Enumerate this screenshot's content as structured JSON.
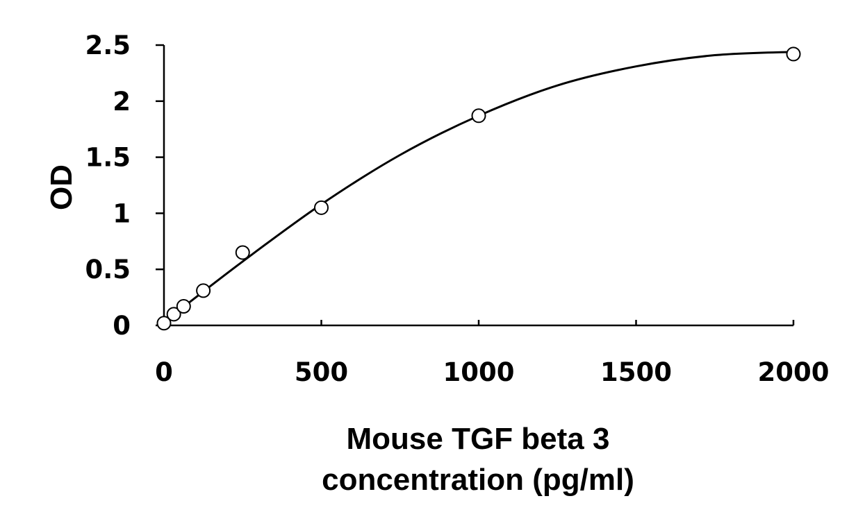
{
  "chart_data": {
    "type": "scatter",
    "title": "",
    "xlabel": [
      "Mouse TGF beta 3",
      "concentration (pg/ml)"
    ],
    "ylabel": "OD",
    "xlim": [
      0,
      2000
    ],
    "ylim": [
      0,
      2.5
    ],
    "x_ticks": [
      "0",
      "500",
      "1000",
      "1500",
      "2000"
    ],
    "y_ticks": [
      "0",
      "0.5",
      "1",
      "1.5",
      "2",
      "2.5"
    ],
    "grid": false,
    "legend": "none",
    "series": [
      {
        "marker": "open-circle",
        "x": [
          0,
          31.25,
          62.5,
          125,
          250,
          500,
          1000,
          2000
        ],
        "y": [
          0.02,
          0.1,
          0.17,
          0.31,
          0.65,
          1.05,
          1.87,
          2.42
        ]
      }
    ],
    "fit_curve": {
      "x": [
        0,
        250,
        500,
        750,
        1000,
        1250,
        1500,
        1750,
        2000
      ],
      "y": [
        0.03,
        0.57,
        1.08,
        1.52,
        1.87,
        2.14,
        2.31,
        2.41,
        2.44
      ]
    }
  }
}
